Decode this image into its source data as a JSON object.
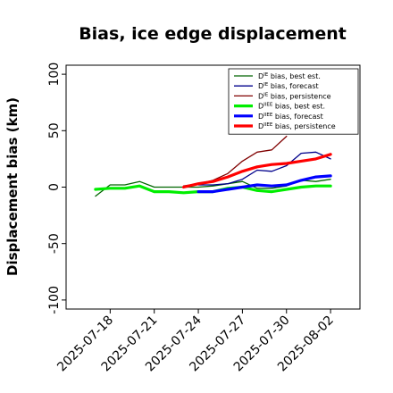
{
  "chart_data": {
    "type": "line",
    "title": "Bias, ice edge displacement",
    "ylabel": "Displacement bias (km)",
    "xlabel": "",
    "ylim": [
      -108,
      108
    ],
    "xlim": [
      "2025-07-15",
      "2025-08-04"
    ],
    "yticks": [
      -100,
      -50,
      0,
      50,
      100
    ],
    "ytick_labels": [
      "-100",
      "-50",
      "0",
      "50",
      "100"
    ],
    "xtick_labels": [
      "2025-07-18",
      "2025-07-21",
      "2025-07-24",
      "2025-07-27",
      "2025-07-30",
      "2025-08-02"
    ],
    "xtick_colors": [
      "#000000",
      "#000000",
      "#228b22",
      "#000000",
      "#000000",
      "#000000"
    ],
    "grid": false,
    "legend_position": "top-right",
    "series": [
      {
        "name": "D^IE bias, best est.",
        "label_main": "D",
        "label_sup": "IE",
        "label_rest": " bias, best est.",
        "color": "#006400",
        "width": 1.3,
        "x": [
          "2025-07-17",
          "2025-07-18",
          "2025-07-19",
          "2025-07-20",
          "2025-07-21",
          "2025-07-22",
          "2025-07-23",
          "2025-07-24",
          "2025-07-25",
          "2025-07-26",
          "2025-07-27",
          "2025-07-28",
          "2025-07-29",
          "2025-07-30",
          "2025-07-31",
          "2025-08-01",
          "2025-08-02"
        ],
        "y": [
          -8,
          2,
          2,
          5,
          0,
          0,
          0,
          0,
          1,
          3,
          5,
          -1,
          -1,
          1,
          6,
          5,
          7
        ]
      },
      {
        "name": "D^IE bias, forecast",
        "label_main": "D",
        "label_sup": "IE",
        "label_rest": " bias, forecast",
        "color": "#00008b",
        "width": 1.3,
        "x": [
          "2025-07-24",
          "2025-07-25",
          "2025-07-26",
          "2025-07-27",
          "2025-07-28",
          "2025-07-29",
          "2025-07-30",
          "2025-07-31",
          "2025-08-01",
          "2025-08-02"
        ],
        "y": [
          2,
          2,
          3,
          7,
          15,
          14,
          19,
          30,
          31,
          25
        ]
      },
      {
        "name": "D^IE bias, persistence",
        "label_main": "D",
        "label_sup": "IE",
        "label_rest": " bias, persistence",
        "color": "#800000",
        "width": 1.3,
        "x": [
          "2025-07-23",
          "2025-07-24",
          "2025-07-25",
          "2025-07-26",
          "2025-07-27",
          "2025-07-28",
          "2025-07-29",
          "2025-07-30"
        ],
        "y": [
          1,
          3,
          6,
          12,
          23,
          31,
          33,
          45
        ]
      },
      {
        "name": "D^IIEE bias, best est.",
        "label_main": "D",
        "label_sup": "IIEE",
        "label_rest": " bias, best est.",
        "color": "#00ee00",
        "width": 3.2,
        "x": [
          "2025-07-17",
          "2025-07-18",
          "2025-07-19",
          "2025-07-20",
          "2025-07-21",
          "2025-07-22",
          "2025-07-23",
          "2025-07-24",
          "2025-07-25",
          "2025-07-26",
          "2025-07-27",
          "2025-07-28",
          "2025-07-29",
          "2025-07-30",
          "2025-07-31",
          "2025-08-01",
          "2025-08-02"
        ],
        "y": [
          -2,
          -1,
          -1,
          1,
          -4,
          -4,
          -5,
          -4,
          -4,
          -1,
          0,
          -3,
          -4,
          -2,
          0,
          1,
          1
        ]
      },
      {
        "name": "D^IIEE bias, forecast",
        "label_main": "D",
        "label_sup": "IIEE",
        "label_rest": " bias, forecast",
        "color": "#0000ff",
        "width": 3.2,
        "x": [
          "2025-07-24",
          "2025-07-25",
          "2025-07-26",
          "2025-07-27",
          "2025-07-28",
          "2025-07-29",
          "2025-07-30",
          "2025-07-31",
          "2025-08-01",
          "2025-08-02"
        ],
        "y": [
          -4,
          -4,
          -2,
          0,
          2,
          1,
          2,
          6,
          9,
          10
        ]
      },
      {
        "name": "D^IIEE bias, persistence",
        "label_main": "D",
        "label_sup": "IIEE",
        "label_rest": " bias, persistence",
        "color": "#ff0000",
        "width": 3.2,
        "x": [
          "2025-07-23",
          "2025-07-24",
          "2025-07-25",
          "2025-07-26",
          "2025-07-27",
          "2025-07-28",
          "2025-07-29",
          "2025-07-30",
          "2025-07-31",
          "2025-08-01",
          "2025-08-02"
        ],
        "y": [
          0,
          3,
          5,
          9,
          14,
          18,
          20,
          21,
          23,
          25,
          29
        ]
      }
    ]
  }
}
